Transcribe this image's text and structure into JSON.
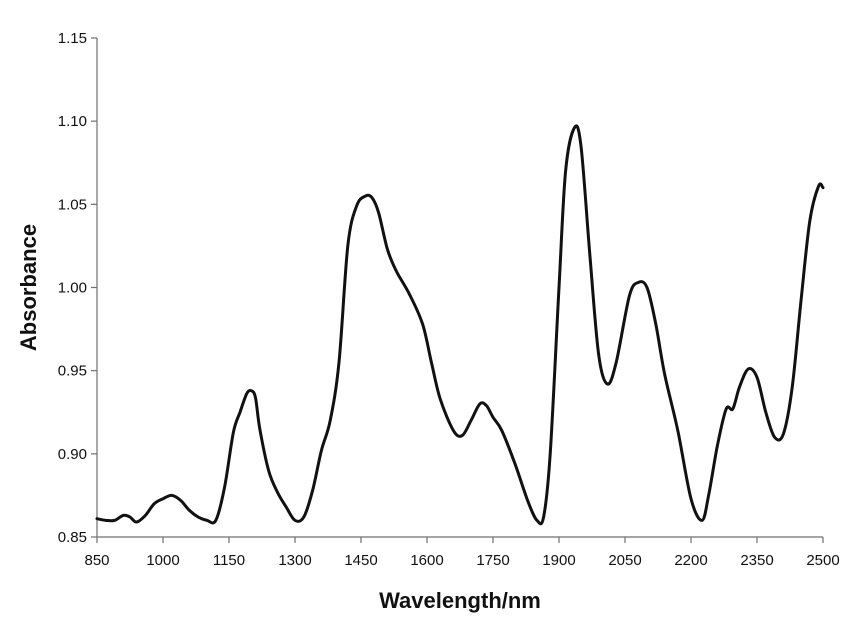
{
  "chart_data": {
    "type": "line",
    "title": "",
    "xlabel": "Wavelength/nm",
    "ylabel": "Absorbance",
    "xlim": [
      850,
      2500
    ],
    "ylim": [
      0.85,
      1.15
    ],
    "xticks": [
      "850",
      "1000",
      "1150",
      "1300",
      "1450",
      "1600",
      "1750",
      "1900",
      "2050",
      "2200",
      "2350",
      "2500"
    ],
    "yticks": [
      "0.85",
      "0.90",
      "0.95",
      "1.00",
      "1.05",
      "1.10",
      "1.15"
    ],
    "grid": false,
    "legend": "none",
    "line_color": "#111111",
    "series": [
      {
        "x": [
          850,
          870,
          890,
          910,
          925,
          940,
          960,
          980,
          1000,
          1020,
          1040,
          1060,
          1080,
          1100,
          1120,
          1140,
          1160,
          1175,
          1190,
          1200,
          1210,
          1220,
          1240,
          1260,
          1280,
          1300,
          1320,
          1340,
          1360,
          1380,
          1400,
          1420,
          1440,
          1460,
          1475,
          1490,
          1510,
          1530,
          1560,
          1590,
          1610,
          1630,
          1660,
          1680,
          1700,
          1720,
          1735,
          1750,
          1770,
          1800,
          1830,
          1850,
          1865,
          1880,
          1900,
          1915,
          1935,
          1950,
          1970,
          1990,
          2010,
          2030,
          2060,
          2080,
          2100,
          2120,
          2140,
          2170,
          2200,
          2225,
          2240,
          2260,
          2280,
          2295,
          2310,
          2330,
          2350,
          2370,
          2390,
          2410,
          2430,
          2450,
          2470,
          2490,
          2500
        ],
        "y": [
          0.861,
          0.86,
          0.86,
          0.863,
          0.862,
          0.859,
          0.863,
          0.87,
          0.873,
          0.875,
          0.872,
          0.866,
          0.862,
          0.86,
          0.86,
          0.88,
          0.913,
          0.925,
          0.936,
          0.938,
          0.934,
          0.915,
          0.89,
          0.877,
          0.868,
          0.86,
          0.862,
          0.878,
          0.902,
          0.92,
          0.955,
          1.025,
          1.049,
          1.055,
          1.054,
          1.045,
          1.023,
          1.01,
          0.996,
          0.978,
          0.955,
          0.933,
          0.914,
          0.911,
          0.92,
          0.93,
          0.929,
          0.922,
          0.914,
          0.894,
          0.871,
          0.86,
          0.862,
          0.9,
          1.0,
          1.07,
          1.096,
          1.085,
          1.02,
          0.96,
          0.942,
          0.955,
          0.995,
          1.003,
          1.0,
          0.978,
          0.948,
          0.914,
          0.873,
          0.86,
          0.875,
          0.905,
          0.927,
          0.927,
          0.94,
          0.951,
          0.946,
          0.925,
          0.91,
          0.912,
          0.94,
          0.992,
          1.04,
          1.061,
          1.06
        ]
      }
    ]
  }
}
